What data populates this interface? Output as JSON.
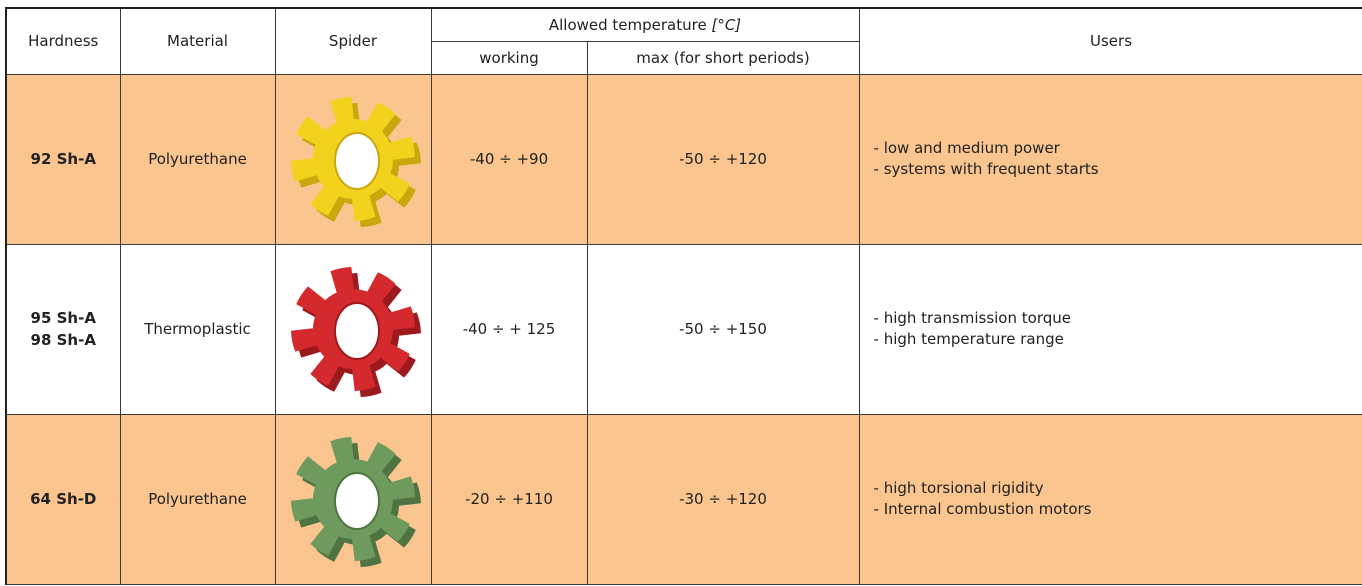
{
  "header": {
    "hardness": "Hardness",
    "material": "Material",
    "spider": "Spider",
    "allowed_temperature": "Allowed temperature",
    "temperature_unit": "[°C]",
    "working": "working",
    "max_short": "max (for short periods)",
    "users": "Users"
  },
  "rows": [
    {
      "hardness": [
        "92 Sh-A"
      ],
      "material": "Polyurethane",
      "spider_color": "#f2d21c",
      "spider_shade": "#c9a80e",
      "working": "-40 ÷ +90",
      "max": "-50 ÷ +120",
      "users": [
        "- low and medium power",
        "- systems with frequent starts"
      ]
    },
    {
      "hardness": [
        "95 Sh-A",
        "98 Sh-A"
      ],
      "material": "Thermoplastic",
      "spider_color": "#d42a2e",
      "spider_shade": "#9c1a1e",
      "working": "-40 ÷ + 125",
      "max": "-50 ÷ +150",
      "users": [
        " - high transmission torque",
        " - high temperature range"
      ]
    },
    {
      "hardness": [
        "64 Sh-D"
      ],
      "material": "Polyurethane",
      "spider_color": "#6f9a5e",
      "spider_shade": "#4f7442",
      "working": "-20 ÷ +110",
      "max": "-30 ÷ +120",
      "users": [
        "- high torsional rigidity",
        "- Internal combustion motors"
      ]
    }
  ]
}
